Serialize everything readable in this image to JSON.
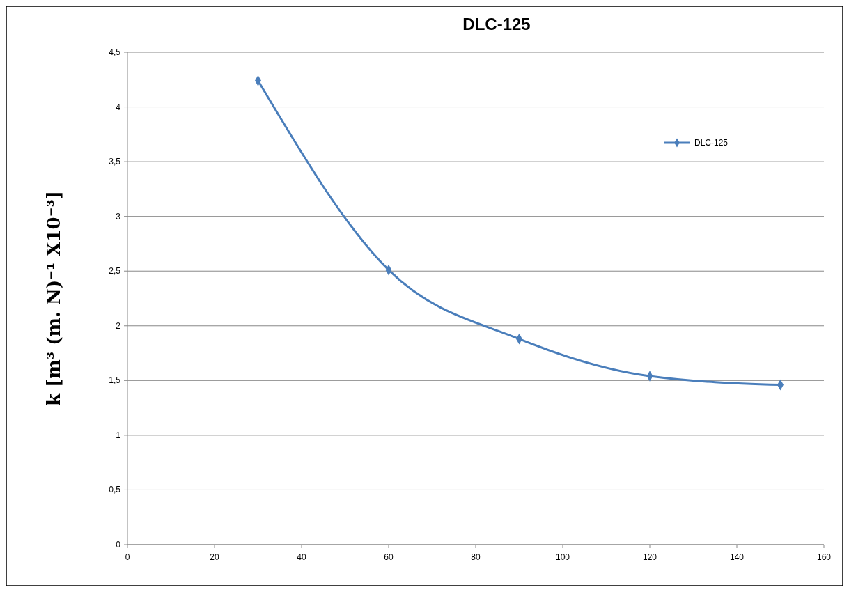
{
  "chart_data": {
    "type": "line",
    "title": "DLC-125",
    "ylabel": "k [m³ (m. N)⁻¹ X10⁻³]",
    "x": [
      30,
      60,
      90,
      120,
      150
    ],
    "series": [
      {
        "name": "DLC-125",
        "color": "#4a7ebb",
        "values": [
          4.24,
          2.51,
          1.88,
          1.54,
          1.46
        ]
      }
    ],
    "xlim": [
      0,
      160
    ],
    "xticks": [
      0,
      20,
      40,
      60,
      80,
      100,
      120,
      140,
      160
    ],
    "ylim": [
      0,
      4.5
    ],
    "yticks": [
      0,
      {
        "value": 0.5,
        "label": "0,5"
      },
      1,
      {
        "value": 1.5,
        "label": "1,5"
      },
      2,
      {
        "value": 2.5,
        "label": "2,5"
      },
      3,
      {
        "value": 3.5,
        "label": "3,5"
      },
      4,
      {
        "value": 4.5,
        "label": "4,5"
      }
    ],
    "grid": "y",
    "legend": "top right",
    "marker": "diamond",
    "line_style": "solid"
  }
}
